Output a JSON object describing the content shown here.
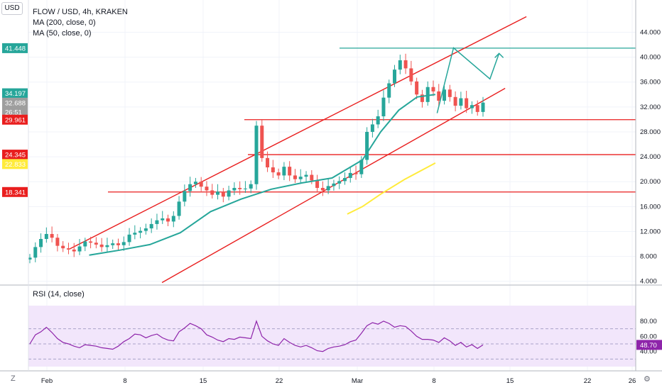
{
  "header": {
    "currency": "USD",
    "title": "FLOW / USD, 4h, KRAKEN",
    "ma200_label": "MA (200, close, 0)",
    "ma50_label": "MA (50, close, 0)"
  },
  "rsi": {
    "label": "RSI (14, close)",
    "value": "48.70"
  },
  "corner_left": "Z",
  "chart_data": {
    "type": "candlestick",
    "title": "FLOW / USD, 4h, KRAKEN",
    "yticks": [
      "44.000",
      "40.000",
      "36.000",
      "32.000",
      "28.000",
      "24.000",
      "20.000",
      "16.000",
      "12.000",
      "8.000",
      "4.000"
    ],
    "rsi_ticks": [
      "80.00",
      "60.00",
      "40.00"
    ],
    "xticks": [
      "Feb",
      "8",
      "15",
      "22",
      "Mar",
      "8",
      "15",
      "22",
      "26"
    ],
    "price_badges": [
      {
        "text": "41.448",
        "value": 41.448,
        "color": "#26a69a"
      },
      {
        "text": "34.197",
        "value": 34.197,
        "color": "#26a69a"
      },
      {
        "text": "32.688",
        "value": 32.688,
        "color": "#9e9e9e"
      },
      {
        "text": "26:51",
        "value": 31.2,
        "color": "#9e9e9e"
      },
      {
        "text": "29.961",
        "value": 29.961,
        "color": "#e91e1e"
      },
      {
        "text": "24.345",
        "value": 24.345,
        "color": "#e91e1e"
      },
      {
        "text": "22.833",
        "value": 22.833,
        "color": "#ffeb3b"
      },
      {
        "text": "18.341",
        "value": 18.341,
        "color": "#e91e1e"
      }
    ],
    "horizontal_levels": [
      {
        "value": 41.448,
        "color": "#26a69a"
      },
      {
        "value": 29.961,
        "color": "#e91e1e"
      },
      {
        "value": 24.345,
        "color": "#e91e1e"
      },
      {
        "value": 18.341,
        "color": "#e91e1e"
      }
    ],
    "channel": {
      "upper": [
        [
          0.068,
          9.2
        ],
        [
          0.82,
          46.5
        ]
      ],
      "lower": [
        [
          0.22,
          3.8
        ],
        [
          0.785,
          35.0
        ]
      ]
    },
    "projection": [
      [
        0.673,
        31.0
      ],
      [
        0.7,
        41.5
      ],
      [
        0.76,
        36.5
      ],
      [
        0.775,
        40.6
      ]
    ],
    "ma50": [
      [
        0.1,
        8.2
      ],
      [
        0.15,
        9.0
      ],
      [
        0.2,
        9.9
      ],
      [
        0.25,
        11.8
      ],
      [
        0.3,
        15.2
      ],
      [
        0.35,
        17.2
      ],
      [
        0.4,
        18.8
      ],
      [
        0.45,
        19.8
      ],
      [
        0.5,
        20.6
      ],
      [
        0.55,
        23.5
      ],
      [
        0.58,
        28.0
      ],
      [
        0.61,
        31.5
      ],
      [
        0.64,
        33.6
      ],
      [
        0.67,
        34.0
      ]
    ],
    "ma200": [
      [
        0.525,
        14.8
      ],
      [
        0.55,
        16.0
      ],
      [
        0.58,
        18.0
      ],
      [
        0.62,
        20.4
      ],
      [
        0.67,
        23.0
      ]
    ],
    "candles_close": [
      7.8,
      9.5,
      10.8,
      11.6,
      11.0,
      9.7,
      9.3,
      9.1,
      8.8,
      9.6,
      10.4,
      10.2,
      9.9,
      9.5,
      9.8,
      10.1,
      9.8,
      10.3,
      11.5,
      11.8,
      12.1,
      12.5,
      13.2,
      13.8,
      14.1,
      13.6,
      14.5,
      16.8,
      18.5,
      19.6,
      20.0,
      19.2,
      18.6,
      17.9,
      18.4,
      17.6,
      18.6,
      19.0,
      18.8,
      18.9,
      19.6,
      29.0,
      23.8,
      22.3,
      21.5,
      21.0,
      22.4,
      21.0,
      20.4,
      20.8,
      21.1,
      20.2,
      19.0,
      18.6,
      19.3,
      19.7,
      20.1,
      20.6,
      21.4,
      21.2,
      23.5,
      28.0,
      29.2,
      30.5,
      33.5,
      35.8,
      38.0,
      39.5,
      38.2,
      36.1,
      34.0,
      32.8,
      35.2,
      34.5,
      33.0,
      34.8,
      33.6,
      32.2,
      33.4,
      31.8,
      32.3,
      31.2,
      32.7
    ],
    "rsi_values": [
      50,
      62,
      66,
      72,
      65,
      57,
      52,
      50,
      47,
      45,
      49,
      48,
      47,
      45,
      44,
      43,
      47,
      53,
      57,
      63,
      62,
      58,
      61,
      63,
      58,
      55,
      54,
      66,
      71,
      77,
      74,
      70,
      62,
      59,
      55,
      53,
      57,
      56,
      59,
      58,
      57,
      80,
      60,
      54,
      50,
      48,
      57,
      52,
      48,
      46,
      48,
      45,
      41,
      40,
      44,
      46,
      47,
      49,
      53,
      55,
      64,
      74,
      78,
      76,
      80,
      77,
      72,
      74,
      73,
      67,
      60,
      56,
      56,
      55,
      52,
      58,
      54,
      48,
      52,
      46,
      49,
      44,
      48.7
    ]
  }
}
